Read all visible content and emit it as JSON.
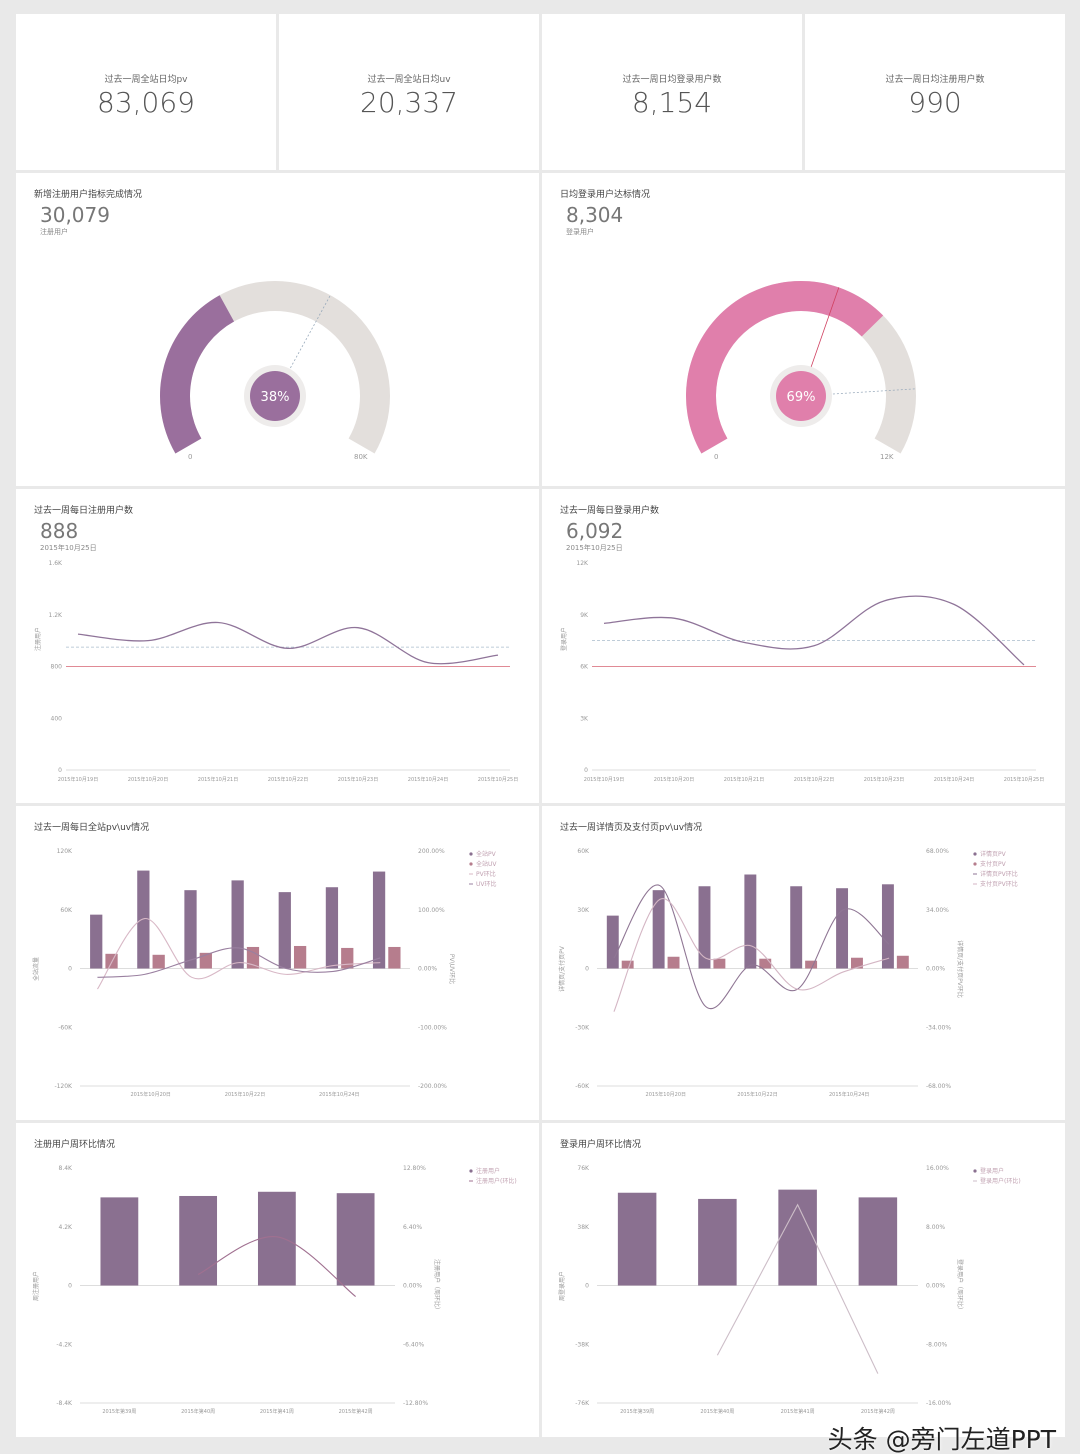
{
  "kpis": [
    {
      "label": "过去一周全站日均pv",
      "value": "83,069"
    },
    {
      "label": "过去一周全站日均uv",
      "value": "20,337"
    },
    {
      "label": "过去一周日均登录用户数",
      "value": "8,154"
    },
    {
      "label": "过去一周日均注册用户数",
      "value": "990"
    }
  ],
  "gauges": [
    {
      "title": "新增注册用户指标完成情况",
      "value": "30,079",
      "sublabel": "注册用户",
      "percent_label": "38%",
      "fraction": 0.38,
      "target_fraction": 0.62,
      "min": "0",
      "max": "80K",
      "color": "#9a6f9d"
    },
    {
      "title": "日均登录用户达标情况",
      "value": "8,304",
      "sublabel": "登录用户",
      "percent_label": "69%",
      "fraction": 0.69,
      "target_fraction": 0.86,
      "needle_fraction": 0.58,
      "min": "0",
      "max": "12K",
      "color": "#e07fab"
    }
  ],
  "chart_data": [
    {
      "type": "line",
      "title": "过去一周每日注册用户数",
      "value": "888",
      "date": "2015年10月25日",
      "ylabel": "注册用户",
      "categories": [
        "2015年10月19日",
        "2015年10月20日",
        "2015年10月21日",
        "2015年10月22日",
        "2015年10月23日",
        "2015年10月24日",
        "2015年10月25日"
      ],
      "values": [
        1050,
        1000,
        1140,
        940,
        1100,
        830,
        888
      ],
      "average": 950,
      "target": 800,
      "ylim": [
        0,
        1600
      ],
      "yticks": [
        "0",
        "400",
        "800",
        "1.2K",
        "1.6K"
      ]
    },
    {
      "type": "line",
      "title": "过去一周每日登录用户数",
      "value": "6,092",
      "date": "2015年10月25日",
      "ylabel": "登录用户",
      "categories": [
        "2015年10月19日",
        "2015年10月20日",
        "2015年10月21日",
        "2015年10月22日",
        "2015年10月23日",
        "2015年10月24日",
        "2015年10月25日"
      ],
      "values": [
        8500,
        8800,
        7400,
        7200,
        9800,
        9600,
        6092
      ],
      "average": 7500,
      "target": 6000,
      "ylim": [
        0,
        12000
      ],
      "yticks": [
        "0",
        "3K",
        "6K",
        "9K",
        "12K"
      ]
    },
    {
      "type": "bar",
      "title": "过去一周每日全站pv\\uv情况",
      "ylabel": "全站流量",
      "y2label": "PV\\UV环比",
      "xticks": [
        "2015年10月20日",
        "2015年10月22日",
        "2015年10月24日"
      ],
      "xtick_index": [
        1,
        3,
        5
      ],
      "n": 7,
      "ylim": [
        -120000,
        120000
      ],
      "yticks": [
        "-120K",
        "-60K",
        "0",
        "60K",
        "120K"
      ],
      "y2lim": [
        -200,
        200
      ],
      "y2ticks": [
        "-200.00%",
        "-100.00%",
        "0.00%",
        "100.00%",
        "200.00%"
      ],
      "series": [
        {
          "name": "全站PV",
          "kind": "bar",
          "color": "#8a7090",
          "values": [
            55000,
            100000,
            80000,
            90000,
            78000,
            83000,
            99000
          ]
        },
        {
          "name": "全站UV",
          "kind": "bar",
          "color": "#b67d8d",
          "values": [
            15000,
            14000,
            16000,
            22000,
            23000,
            21000,
            22000
          ]
        },
        {
          "name": "PV环比",
          "kind": "line",
          "color": "#d8b8c6",
          "values": [
            -35,
            85,
            -15,
            10,
            -10,
            5,
            10
          ]
        },
        {
          "name": "UV环比",
          "kind": "line",
          "color": "#9a80a0",
          "values": [
            -15,
            -10,
            15,
            35,
            0,
            -5,
            18
          ]
        }
      ]
    },
    {
      "type": "bar",
      "title": "过去一周详情页及支付页pv\\uv情况",
      "ylabel": "详情页/支付页PV",
      "y2label": "详情页/支付页PV环比",
      "xticks": [
        "2015年10月20日",
        "2015年10月22日",
        "2015年10月24日"
      ],
      "xtick_index": [
        1,
        3,
        5
      ],
      "n": 7,
      "ylim": [
        -60000,
        60000
      ],
      "yticks": [
        "-60K",
        "-30K",
        "0",
        "30K",
        "60K"
      ],
      "y2lim": [
        -68,
        68
      ],
      "y2ticks": [
        "-68.00%",
        "-34.00%",
        "0.00%",
        "34.00%",
        "68.00%"
      ],
      "series": [
        {
          "name": "详情页PV",
          "kind": "bar",
          "color": "#8a7090",
          "values": [
            27000,
            40000,
            42000,
            48000,
            42000,
            41000,
            43000
          ]
        },
        {
          "name": "支付页PV",
          "kind": "bar",
          "color": "#b67d8d",
          "values": [
            4000,
            6000,
            5000,
            5000,
            4000,
            5500,
            6500
          ]
        },
        {
          "name": "详情页PV环比",
          "kind": "line",
          "color": "#8f7694",
          "values": [
            6,
            48,
            -22,
            2,
            -12,
            34,
            14
          ]
        },
        {
          "name": "支付页PV环比",
          "kind": "line",
          "color": "#d4b6c4",
          "values": [
            -25,
            40,
            6,
            13,
            -12,
            -2,
            6
          ]
        }
      ]
    },
    {
      "type": "bar",
      "title": "注册用户周环比情况",
      "ylabel": "周注册用户",
      "y2label": "注册用户（周环比）",
      "xticks": [
        "2015年第39周",
        "2015年第40周",
        "2015年第41周",
        "2015年第42周"
      ],
      "xtick_index": [
        0,
        1,
        2,
        3
      ],
      "n": 4,
      "ylim": [
        -8400,
        8400
      ],
      "yticks": [
        "-8.4K",
        "-4.2K",
        "0",
        "4.2K",
        "8.4K"
      ],
      "y2lim": [
        -12.8,
        12.8
      ],
      "y2ticks": [
        "-12.80%",
        "-6.40%",
        "0.00%",
        "6.40%",
        "12.80%"
      ],
      "series": [
        {
          "name": "注册用户",
          "kind": "bar",
          "color": "#8a7090",
          "values": [
            6300,
            6400,
            6700,
            6600
          ]
        },
        {
          "name": "注册用户(环比)",
          "kind": "line",
          "color": "#a07090",
          "values": [
            null,
            1.2,
            5.3,
            -1.2
          ]
        }
      ]
    },
    {
      "type": "bar",
      "title": "登录用户周环比情况",
      "ylabel": "周登录用户",
      "y2label": "登录用户（周环比）",
      "xticks": [
        "2015年第39周",
        "2015年第40周",
        "2015年第41周",
        "2015年第42周"
      ],
      "xtick_index": [
        0,
        1,
        2,
        3
      ],
      "n": 4,
      "ylim": [
        -76000,
        76000
      ],
      "yticks": [
        "-76K",
        "-38K",
        "0",
        "38K",
        "76K"
      ],
      "y2lim": [
        -16,
        16
      ],
      "y2ticks": [
        "-16.00%",
        "-8.00%",
        "0.00%",
        "8.00%",
        "16.00%"
      ],
      "straight": true,
      "series": [
        {
          "name": "登录用户",
          "kind": "bar",
          "color": "#8a7090",
          "values": [
            60000,
            56000,
            62000,
            57000
          ]
        },
        {
          "name": "登录用户(环比)",
          "kind": "line",
          "color": "#cdbec8",
          "values": [
            null,
            -9.5,
            11,
            -12
          ]
        }
      ]
    }
  ],
  "watermark": "头条 @旁门左道PPT"
}
